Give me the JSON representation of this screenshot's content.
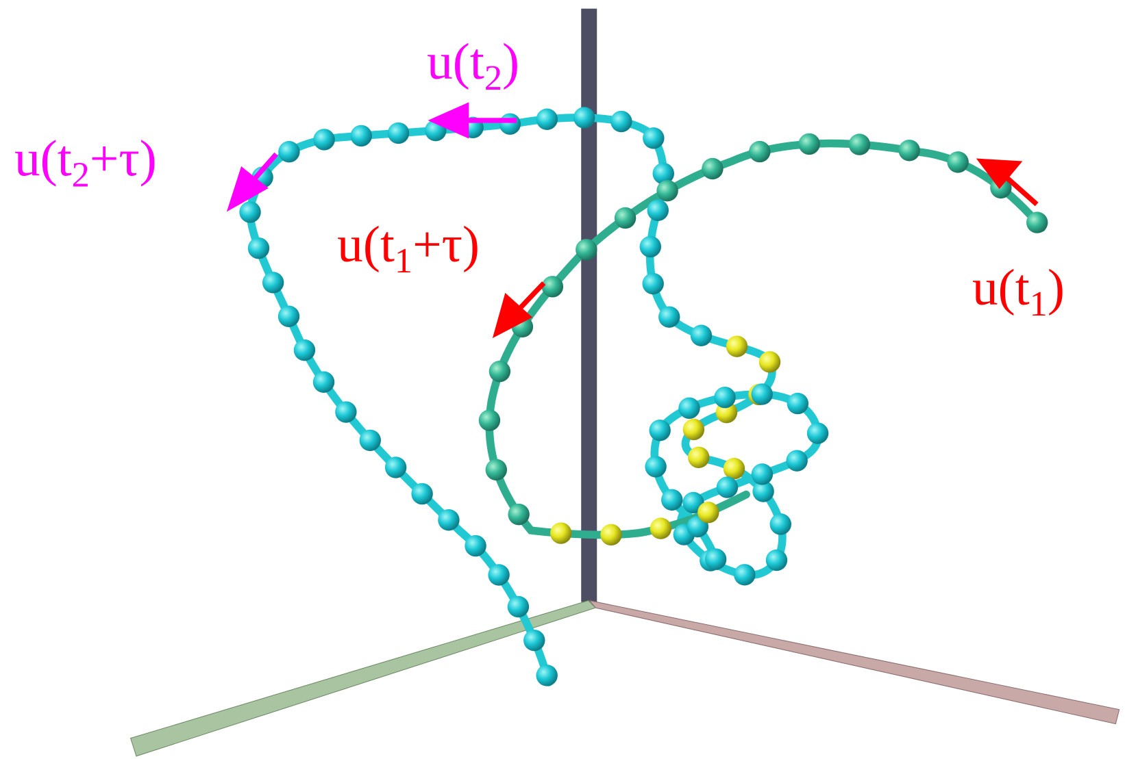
{
  "labels": [
    {
      "base": "u(t",
      "sub": "2",
      "tail": ")"
    },
    {
      "base": "u(t",
      "sub": "2",
      "tail": "+τ)"
    },
    {
      "base": "u(t",
      "sub": "1",
      "tail": "+τ)"
    },
    {
      "base": "u(t",
      "sub": "1",
      "tail": ")"
    }
  ]
}
